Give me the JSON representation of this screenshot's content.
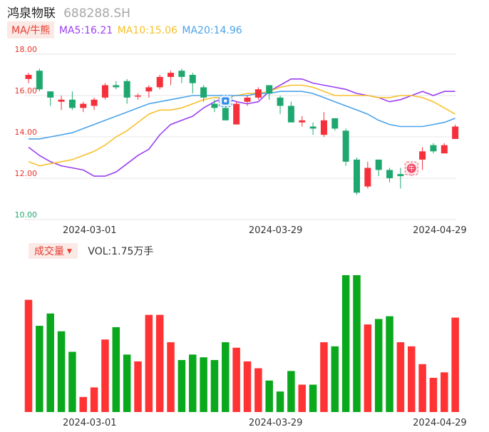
{
  "header": {
    "stock_name": "鸿泉物联",
    "stock_code": "688288.SH"
  },
  "ma_legend": {
    "badge": "MA/牛熊",
    "ma5": "MA5:16.21",
    "ma10": "MA10:15.06",
    "ma20": "MA20:14.96"
  },
  "volume_legend": {
    "badge": "成交量",
    "value": "VOL:1.75万手"
  },
  "colors": {
    "up": "#f5303a",
    "down": "#1ea86f",
    "vol_up": "#ff3333",
    "vol_down": "#0aa81c",
    "ma5": "#9b3ff1",
    "ma10": "#f7c02a",
    "ma20": "#4aa3ea",
    "axis_label": "#e8332a",
    "grid": "#e6e6e6"
  },
  "chart_data": [
    {
      "type": "candlestick",
      "ylim": [
        10.0,
        18.0
      ],
      "y_ticks": [
        "10.00",
        "12.00",
        "14.00",
        "16.00",
        "18.00"
      ],
      "x_ticks": [
        {
          "index": 5,
          "label": "2024-03-01"
        },
        {
          "index": 22,
          "label": "2024-03-29"
        },
        {
          "index": 37,
          "label": "2024-04-29"
        }
      ],
      "grid": true,
      "markers": [
        {
          "index": 18,
          "icon": "bear-icon"
        },
        {
          "index": 35,
          "icon": "bull-icon",
          "label": "牛"
        }
      ],
      "candles": [
        {
          "o": 16.8,
          "c": 17.0,
          "h": 17.1,
          "l": 16.6
        },
        {
          "o": 17.2,
          "c": 16.3,
          "h": 17.3,
          "l": 16.2
        },
        {
          "o": 16.2,
          "c": 15.9,
          "h": 16.2,
          "l": 15.5
        },
        {
          "o": 15.7,
          "c": 15.8,
          "h": 16.0,
          "l": 15.3
        },
        {
          "o": 15.8,
          "c": 15.4,
          "h": 16.2,
          "l": 15.3
        },
        {
          "o": 15.4,
          "c": 15.6,
          "h": 15.7,
          "l": 15.2
        },
        {
          "o": 15.5,
          "c": 15.8,
          "h": 15.9,
          "l": 15.3
        },
        {
          "o": 15.9,
          "c": 16.5,
          "h": 16.6,
          "l": 15.8
        },
        {
          "o": 16.5,
          "c": 16.4,
          "h": 16.7,
          "l": 16.3
        },
        {
          "o": 16.7,
          "c": 15.9,
          "h": 16.8,
          "l": 15.6
        },
        {
          "o": 16.0,
          "c": 16.0,
          "h": 16.1,
          "l": 15.8
        },
        {
          "o": 16.2,
          "c": 16.4,
          "h": 16.5,
          "l": 15.9
        },
        {
          "o": 16.4,
          "c": 16.9,
          "h": 17.0,
          "l": 16.3
        },
        {
          "o": 16.9,
          "c": 17.1,
          "h": 17.2,
          "l": 16.5
        },
        {
          "o": 17.2,
          "c": 16.9,
          "h": 17.3,
          "l": 16.6
        },
        {
          "o": 17.0,
          "c": 16.6,
          "h": 17.1,
          "l": 16.1
        },
        {
          "o": 16.4,
          "c": 15.9,
          "h": 16.5,
          "l": 15.7
        },
        {
          "o": 15.6,
          "c": 15.4,
          "h": 15.8,
          "l": 15.2
        },
        {
          "o": 15.4,
          "c": 14.8,
          "h": 15.6,
          "l": 14.8
        },
        {
          "o": 14.6,
          "c": 15.6,
          "h": 15.7,
          "l": 14.6
        },
        {
          "o": 15.7,
          "c": 15.9,
          "h": 16.0,
          "l": 15.5
        },
        {
          "o": 15.9,
          "c": 16.3,
          "h": 16.4,
          "l": 15.8
        },
        {
          "o": 16.5,
          "c": 16.1,
          "h": 16.5,
          "l": 15.8
        },
        {
          "o": 15.9,
          "c": 15.5,
          "h": 16.0,
          "l": 15.1
        },
        {
          "o": 15.5,
          "c": 14.7,
          "h": 15.7,
          "l": 14.7
        },
        {
          "o": 14.7,
          "c": 14.8,
          "h": 15.0,
          "l": 14.5
        },
        {
          "o": 14.5,
          "c": 14.4,
          "h": 14.7,
          "l": 14.1
        },
        {
          "o": 14.1,
          "c": 14.8,
          "h": 15.2,
          "l": 14.0
        },
        {
          "o": 14.9,
          "c": 14.4,
          "h": 14.9,
          "l": 14.3
        },
        {
          "o": 14.3,
          "c": 12.8,
          "h": 14.4,
          "l": 12.6
        },
        {
          "o": 12.9,
          "c": 11.3,
          "h": 13.0,
          "l": 11.2
        },
        {
          "o": 11.6,
          "c": 12.5,
          "h": 12.8,
          "l": 11.5
        },
        {
          "o": 12.9,
          "c": 12.4,
          "h": 12.9,
          "l": 12.1
        },
        {
          "o": 12.4,
          "c": 12.0,
          "h": 12.5,
          "l": 11.8
        },
        {
          "o": 12.2,
          "c": 12.1,
          "h": 12.5,
          "l": 11.5
        },
        {
          "o": 12.2,
          "c": 12.6,
          "h": 12.8,
          "l": 12.1
        },
        {
          "o": 12.9,
          "c": 13.3,
          "h": 13.5,
          "l": 12.4
        },
        {
          "o": 13.6,
          "c": 13.3,
          "h": 13.7,
          "l": 13.2
        },
        {
          "o": 13.2,
          "c": 13.6,
          "h": 13.7,
          "l": 13.2
        },
        {
          "o": 13.9,
          "c": 14.5,
          "h": 14.6,
          "l": 13.9
        }
      ],
      "series": [
        {
          "name": "MA5",
          "values": [
            13.5,
            13.1,
            12.8,
            12.6,
            12.5,
            12.4,
            12.1,
            12.1,
            12.3,
            12.7,
            13.1,
            13.4,
            14.1,
            14.6,
            14.8,
            15.0,
            15.4,
            15.7,
            15.9,
            15.7,
            15.6,
            15.7,
            16.2,
            16.5,
            16.8,
            16.8,
            16.6,
            16.5,
            16.4,
            16.3,
            16.1,
            16.0,
            15.9,
            15.7,
            15.8,
            16.0,
            16.2,
            16.0,
            16.2,
            16.2
          ]
        },
        {
          "name": "MA10",
          "values": [
            12.8,
            12.6,
            12.7,
            12.8,
            12.9,
            13.1,
            13.3,
            13.6,
            14.0,
            14.3,
            14.7,
            15.1,
            15.3,
            15.3,
            15.4,
            15.6,
            15.8,
            15.9,
            15.9,
            16.0,
            16.1,
            16.1,
            16.2,
            16.4,
            16.5,
            16.5,
            16.4,
            16.2,
            16.0,
            16.0,
            16.0,
            16.0,
            15.9,
            15.9,
            16.0,
            16.0,
            15.9,
            15.7,
            15.4,
            15.1
          ]
        },
        {
          "name": "MA20",
          "values": [
            13.9,
            13.9,
            14.0,
            14.1,
            14.2,
            14.4,
            14.6,
            14.8,
            15.0,
            15.2,
            15.4,
            15.6,
            15.7,
            15.8,
            15.9,
            16.0,
            16.0,
            16.0,
            16.0,
            16.0,
            16.0,
            16.1,
            16.1,
            16.2,
            16.2,
            16.2,
            16.1,
            15.9,
            15.7,
            15.5,
            15.3,
            15.1,
            14.8,
            14.6,
            14.5,
            14.5,
            14.5,
            14.6,
            14.7,
            14.9
          ]
        }
      ]
    },
    {
      "type": "bar",
      "title": "成交量",
      "x_ticks": [
        {
          "index": 5,
          "label": "2024-03-01"
        },
        {
          "index": 22,
          "label": "2024-03-29"
        },
        {
          "index": 37,
          "label": "2024-04-29"
        }
      ],
      "ylim": [
        0,
        1.0
      ],
      "values": [
        0.82,
        0.63,
        0.72,
        0.59,
        0.44,
        0.11,
        0.18,
        0.53,
        0.62,
        0.42,
        0.37,
        0.71,
        0.71,
        0.51,
        0.38,
        0.42,
        0.4,
        0.38,
        0.51,
        0.47,
        0.37,
        0.32,
        0.23,
        0.15,
        0.3,
        0.2,
        0.2,
        0.51,
        0.48,
        1.0,
        1.0,
        0.64,
        0.68,
        0.7,
        0.51,
        0.48,
        0.35,
        0.25,
        0.29,
        0.69
      ],
      "up": [
        true,
        false,
        false,
        false,
        false,
        true,
        true,
        true,
        false,
        false,
        true,
        true,
        true,
        true,
        false,
        false,
        false,
        false,
        false,
        true,
        true,
        true,
        false,
        false,
        false,
        true,
        false,
        true,
        false,
        false,
        false,
        true,
        false,
        false,
        true,
        true,
        true,
        true,
        true,
        true
      ]
    }
  ]
}
